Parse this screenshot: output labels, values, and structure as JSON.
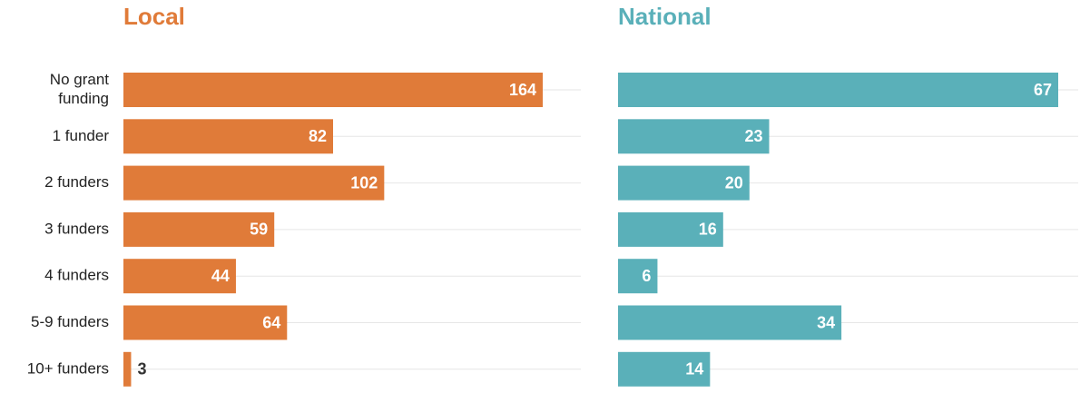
{
  "chart_data": [
    {
      "type": "bar",
      "title": "Local",
      "color": "#e07b39",
      "categories": [
        "No grant funding",
        "1 funder",
        "2 funders",
        "3 funders",
        "4 funders",
        "5-9 funders",
        "10+ funders"
      ],
      "values": [
        164,
        82,
        102,
        59,
        44,
        64,
        3
      ]
    },
    {
      "type": "bar",
      "title": "National",
      "color": "#5ab0b9",
      "values": [
        67,
        23,
        20,
        16,
        6,
        34,
        14
      ]
    }
  ]
}
